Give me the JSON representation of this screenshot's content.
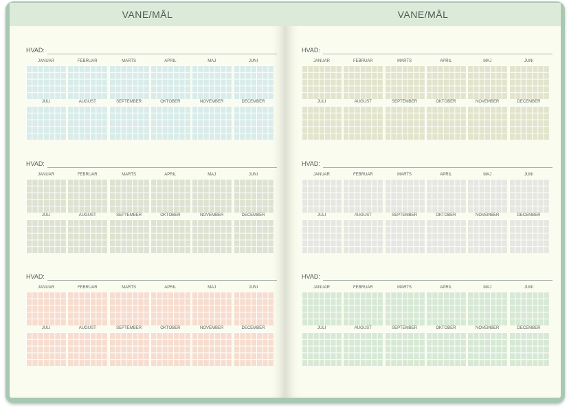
{
  "months_first_half": [
    "JANUAR",
    "FEBRUAR",
    "MARTS",
    "APRIL",
    "MAJ",
    "JUNI"
  ],
  "months_second_half": [
    "JULI",
    "AUGUST",
    "SEPTEMBER",
    "OKTOBER",
    "NOVEMBER",
    "DECEMBER"
  ],
  "colors": {
    "cover": "#a9c8b4",
    "page": "#fafcef",
    "header": "#dcebd9",
    "text": "#4e5a57"
  },
  "pages": [
    {
      "id": "left",
      "title": "VANE/MÅL",
      "sections": [
        {
          "label": "HVAD:",
          "grid_color": "#d9ecea"
        },
        {
          "label": "HVAD:",
          "grid_color": "#dde2d1"
        },
        {
          "label": "HVAD:",
          "grid_color": "#f7ddcf"
        }
      ]
    },
    {
      "id": "right",
      "title": "VANE/MÅL",
      "sections": [
        {
          "label": "HVAD:",
          "grid_color": "#e2e4cc"
        },
        {
          "label": "HVAD:",
          "grid_color": "#e6e7e1"
        },
        {
          "label": "HVAD:",
          "grid_color": "#d7e9d4"
        }
      ]
    }
  ]
}
